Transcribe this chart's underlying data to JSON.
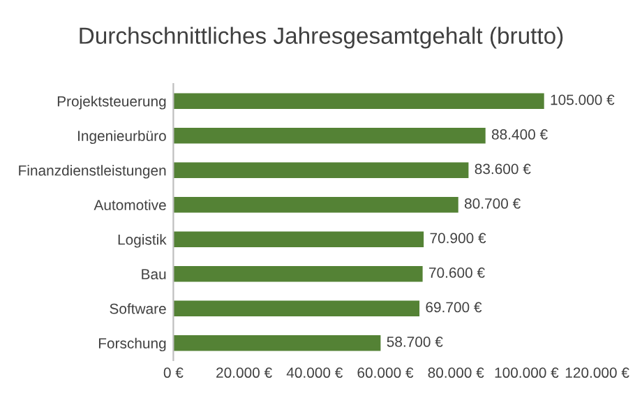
{
  "chart_data": {
    "type": "bar",
    "orientation": "horizontal",
    "title": "Durchschnittliches Jahresgesamtgehalt (brutto)",
    "categories": [
      "Projektsteuerung",
      "Ingenieurbüro",
      "Finanzdienstleistungen",
      "Automotive",
      "Logistik",
      "Bau",
      "Software",
      "Forschung"
    ],
    "values": [
      105000,
      88400,
      83600,
      80700,
      70900,
      70600,
      69700,
      58700
    ],
    "value_labels": [
      "105.000 €",
      "88.400 €",
      "83.600 €",
      "80.700 €",
      "70.900 €",
      "70.600 €",
      "69.700 €",
      "58.700 €"
    ],
    "color": "#548235",
    "xlim": [
      0,
      120000
    ],
    "xticks": [
      {
        "value": 0,
        "label": "0 €"
      },
      {
        "value": 20000,
        "label": "20.000 €"
      },
      {
        "value": 40000,
        "label": "40.000 €"
      },
      {
        "value": 60000,
        "label": "60.000 €"
      },
      {
        "value": 80000,
        "label": "80.000 €"
      },
      {
        "value": 100000,
        "label": "100.000 €"
      },
      {
        "value": 120000,
        "label": "120.000 €"
      }
    ],
    "grid": false,
    "legend": false
  }
}
